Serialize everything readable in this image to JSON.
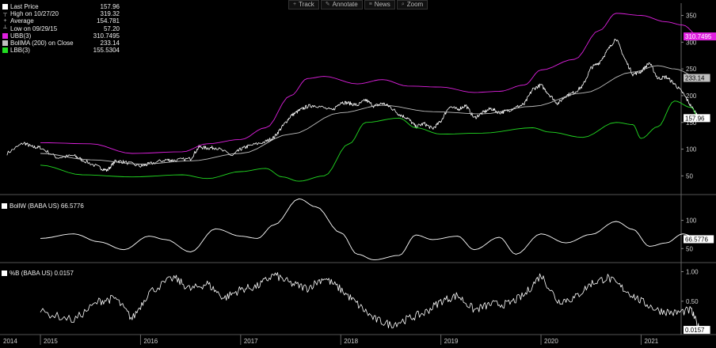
{
  "toolbar": {
    "buttons": [
      {
        "label": "Track",
        "icon": "crosshair-icon",
        "glyph": "+"
      },
      {
        "label": "Annotate",
        "icon": "pencil-icon",
        "glyph": "✎"
      },
      {
        "label": "News",
        "icon": "news-icon",
        "glyph": "≡"
      },
      {
        "label": "Zoom",
        "icon": "zoom-icon",
        "glyph": "⌕"
      }
    ]
  },
  "legend": {
    "items": [
      {
        "label": "Last Price",
        "value": "157.96",
        "swatch": "#ffffff",
        "glyph": ""
      },
      {
        "label": "High on 10/27/20",
        "value": "319.32",
        "swatch": "",
        "glyph": "┬"
      },
      {
        "label": "Average",
        "value": "154.781",
        "swatch": "",
        "glyph": "+"
      },
      {
        "label": "Low on 09/29/15",
        "value": "57.20",
        "swatch": "",
        "glyph": "┴"
      },
      {
        "label": "UBB(3)",
        "value": "310.7495",
        "swatch": "#e020e0",
        "glyph": ""
      },
      {
        "label": "BollMA (200)  on Close",
        "value": "233.14",
        "swatch": "#bfbfbf",
        "glyph": ""
      },
      {
        "label": "LBB(3)",
        "value": "155.5304",
        "swatch": "#22dd22",
        "glyph": ""
      }
    ]
  },
  "panels": {
    "bollw_title": "BollW (BABA US) 66.5776",
    "pctb_title": "%B (BABA US) 0.0157"
  },
  "chart_data": [
    {
      "type": "line",
      "panel": "price",
      "x_start": "2014-09",
      "x_end": "2021-05",
      "ylim": [
        18,
        370
      ],
      "yticks": [
        50,
        100,
        150,
        200,
        250,
        300,
        350
      ],
      "x_tick_labels": [
        "2014",
        "2015",
        "2016",
        "2017",
        "2018",
        "2019",
        "2020",
        "2021"
      ],
      "tags": [
        {
          "series": "UBB(3)",
          "value": "310.7495",
          "color": "#e020e0"
        },
        {
          "series": "BollMA (200)",
          "value": "233.14",
          "color": "#bfbfbf"
        },
        {
          "series": "Last Price",
          "value": "157.96",
          "color": "#ffffff"
        }
      ],
      "series": [
        {
          "name": "Last Price",
          "color": "#ffffff",
          "noise": 3.5,
          "points": [
            [
              "2014-09",
              92
            ],
            [
              "2014-11",
              112
            ],
            [
              "2014-12",
              104
            ],
            [
              "2015-01",
              103
            ],
            [
              "2015-03",
              84
            ],
            [
              "2015-05",
              88
            ],
            [
              "2015-06",
              80
            ],
            [
              "2015-08",
              66
            ],
            [
              "2015-09",
              60
            ],
            [
              "2015-10",
              78
            ],
            [
              "2015-11",
              76
            ],
            [
              "2016-01",
              68
            ],
            [
              "2016-02",
              72
            ],
            [
              "2016-04",
              80
            ],
            [
              "2016-05",
              79
            ],
            [
              "2016-07",
              82
            ],
            [
              "2016-08",
              104
            ],
            [
              "2016-09",
              102
            ],
            [
              "2016-10",
              103
            ],
            [
              "2016-12",
              88
            ],
            [
              "2017-01",
              100
            ],
            [
              "2017-02",
              106
            ],
            [
              "2017-04",
              114
            ],
            [
              "2017-05",
              122
            ],
            [
              "2017-06",
              142
            ],
            [
              "2017-07",
              162
            ],
            [
              "2017-08",
              172
            ],
            [
              "2017-09",
              180
            ],
            [
              "2017-10",
              182
            ],
            [
              "2017-12",
              172
            ],
            [
              "2018-01",
              188
            ],
            [
              "2018-02",
              186
            ],
            [
              "2018-03",
              182
            ],
            [
              "2018-04",
              192
            ],
            [
              "2018-05",
              180
            ],
            [
              "2018-06",
              186
            ],
            [
              "2018-07",
              178
            ],
            [
              "2018-08",
              165
            ],
            [
              "2018-09",
              158
            ],
            [
              "2018-10",
              142
            ],
            [
              "2018-11",
              148
            ],
            [
              "2018-12",
              138
            ],
            [
              "2019-01",
              152
            ],
            [
              "2019-02",
              180
            ],
            [
              "2019-03",
              174
            ],
            [
              "2019-04",
              182
            ],
            [
              "2019-05",
              158
            ],
            [
              "2019-06",
              168
            ],
            [
              "2019-07",
              176
            ],
            [
              "2019-08",
              168
            ],
            [
              "2019-09",
              172
            ],
            [
              "2019-10",
              178
            ],
            [
              "2019-11",
              184
            ],
            [
              "2019-12",
              212
            ],
            [
              "2020-01",
              220
            ],
            [
              "2020-02",
              202
            ],
            [
              "2020-03",
              185
            ],
            [
              "2020-04",
              200
            ],
            [
              "2020-05",
              206
            ],
            [
              "2020-06",
              218
            ],
            [
              "2020-07",
              252
            ],
            [
              "2020-08",
              262
            ],
            [
              "2020-09",
              285
            ],
            [
              "2020-10",
              308
            ],
            [
              "2020-11",
              270
            ],
            [
              "2020-12",
              240
            ],
            [
              "2021-01",
              245
            ],
            [
              "2021-02",
              262
            ],
            [
              "2021-03",
              232
            ],
            [
              "2021-04",
              235
            ],
            [
              "2021-05",
              222
            ],
            [
              "2021-06",
              205
            ],
            [
              "2021-07",
              180
            ],
            [
              "2021-08",
              158
            ]
          ]
        },
        {
          "name": "UBB(3)",
          "color": "#e020e0",
          "points": [
            [
              "2015-01",
              112
            ],
            [
              "2015-07",
              110
            ],
            [
              "2015-12",
              92
            ],
            [
              "2016-06",
              95
            ],
            [
              "2016-09",
              110
            ],
            [
              "2017-01",
              118
            ],
            [
              "2017-04",
              140
            ],
            [
              "2017-07",
              200
            ],
            [
              "2017-09",
              232
            ],
            [
              "2017-11",
              236
            ],
            [
              "2018-03",
              222
            ],
            [
              "2018-06",
              230
            ],
            [
              "2018-09",
              218
            ],
            [
              "2019-01",
              216
            ],
            [
              "2019-05",
              206
            ],
            [
              "2019-08",
              208
            ],
            [
              "2019-11",
              220
            ],
            [
              "2020-01",
              248
            ],
            [
              "2020-05",
              268
            ],
            [
              "2020-08",
              322
            ],
            [
              "2020-10",
              354
            ],
            [
              "2021-01",
              350
            ],
            [
              "2021-04",
              338
            ],
            [
              "2021-06",
              332
            ],
            [
              "2021-08",
              310
            ]
          ]
        },
        {
          "name": "BollMA (200)",
          "color": "#bfbfbf",
          "points": [
            [
              "2015-01",
              92
            ],
            [
              "2015-07",
              80
            ],
            [
              "2016-01",
              72
            ],
            [
              "2016-07",
              78
            ],
            [
              "2017-01",
              92
            ],
            [
              "2017-07",
              128
            ],
            [
              "2018-01",
              168
            ],
            [
              "2018-06",
              182
            ],
            [
              "2018-12",
              170
            ],
            [
              "2019-06",
              166
            ],
            [
              "2019-12",
              180
            ],
            [
              "2020-06",
              205
            ],
            [
              "2020-12",
              244
            ],
            [
              "2021-03",
              256
            ],
            [
              "2021-05",
              250
            ],
            [
              "2021-08",
              233
            ]
          ]
        },
        {
          "name": "LBB(3)",
          "color": "#22dd22",
          "points": [
            [
              "2015-01",
              70
            ],
            [
              "2015-06",
              52
            ],
            [
              "2015-12",
              48
            ],
            [
              "2016-06",
              52
            ],
            [
              "2016-09",
              45
            ],
            [
              "2017-01",
              58
            ],
            [
              "2017-04",
              64
            ],
            [
              "2017-06",
              48
            ],
            [
              "2017-08",
              40
            ],
            [
              "2017-11",
              50
            ],
            [
              "2018-02",
              110
            ],
            [
              "2018-04",
              150
            ],
            [
              "2018-08",
              158
            ],
            [
              "2018-10",
              140
            ],
            [
              "2019-01",
              128
            ],
            [
              "2019-06",
              130
            ],
            [
              "2019-12",
              140
            ],
            [
              "2020-02",
              132
            ],
            [
              "2020-06",
              122
            ],
            [
              "2020-10",
              150
            ],
            [
              "2020-12",
              146
            ],
            [
              "2021-01",
              120
            ],
            [
              "2021-03",
              142
            ],
            [
              "2021-05",
              190
            ],
            [
              "2021-07",
              178
            ],
            [
              "2021-08",
              155
            ]
          ]
        }
      ]
    },
    {
      "type": "line",
      "panel": "bollw",
      "name": "BollW (BABA US)",
      "ylim": [
        28,
        140
      ],
      "yticks": [
        50,
        100
      ],
      "tags": [
        {
          "series": "BollW",
          "value": "66.5776",
          "color": "#ffffff"
        }
      ],
      "series": [
        {
          "name": "BollW",
          "color": "#ffffff",
          "points": [
            [
              "2015-01",
              68
            ],
            [
              "2015-05",
              76
            ],
            [
              "2015-08",
              62
            ],
            [
              "2015-11",
              48
            ],
            [
              "2016-02",
              72
            ],
            [
              "2016-04",
              66
            ],
            [
              "2016-07",
              44
            ],
            [
              "2016-10",
              85
            ],
            [
              "2017-01",
              72
            ],
            [
              "2017-03",
              68
            ],
            [
              "2017-05",
              92
            ],
            [
              "2017-08",
              138
            ],
            [
              "2017-10",
              124
            ],
            [
              "2018-01",
              78
            ],
            [
              "2018-03",
              40
            ],
            [
              "2018-05",
              30
            ],
            [
              "2018-08",
              38
            ],
            [
              "2018-10",
              74
            ],
            [
              "2018-12",
              66
            ],
            [
              "2019-03",
              72
            ],
            [
              "2019-05",
              48
            ],
            [
              "2019-08",
              70
            ],
            [
              "2019-10",
              40
            ],
            [
              "2020-01",
              76
            ],
            [
              "2020-04",
              60
            ],
            [
              "2020-07",
              75
            ],
            [
              "2020-10",
              98
            ],
            [
              "2020-12",
              84
            ],
            [
              "2021-02",
              54
            ],
            [
              "2021-04",
              60
            ],
            [
              "2021-06",
              76
            ],
            [
              "2021-08",
              66.5776
            ]
          ]
        }
      ]
    },
    {
      "type": "line",
      "panel": "pctb",
      "name": "%B (BABA US)",
      "ylim": [
        -0.05,
        1.1
      ],
      "yticks": [
        0.5,
        1.0
      ],
      "yticklabels": [
        "0.50",
        "1.00"
      ],
      "tags": [
        {
          "series": "%B",
          "value": "0.0157",
          "color": "#ffffff"
        }
      ],
      "series": [
        {
          "name": "%B",
          "color": "#ffffff",
          "noise": 0.07,
          "points": [
            [
              "2015-01",
              0.32
            ],
            [
              "2015-05",
              0.18
            ],
            [
              "2015-08",
              0.5
            ],
            [
              "2015-10",
              0.55
            ],
            [
              "2015-12",
              0.2
            ],
            [
              "2016-02",
              0.65
            ],
            [
              "2016-05",
              0.9
            ],
            [
              "2016-07",
              0.7
            ],
            [
              "2016-09",
              0.8
            ],
            [
              "2016-11",
              0.55
            ],
            [
              "2017-01",
              0.7
            ],
            [
              "2017-03",
              0.75
            ],
            [
              "2017-05",
              0.95
            ],
            [
              "2017-07",
              0.8
            ],
            [
              "2017-09",
              0.72
            ],
            [
              "2017-11",
              0.9
            ],
            [
              "2018-01",
              0.7
            ],
            [
              "2018-03",
              0.45
            ],
            [
              "2018-05",
              0.2
            ],
            [
              "2018-07",
              0.1
            ],
            [
              "2018-09",
              0.2
            ],
            [
              "2018-11",
              0.3
            ],
            [
              "2019-01",
              0.5
            ],
            [
              "2019-03",
              0.6
            ],
            [
              "2019-05",
              0.35
            ],
            [
              "2019-07",
              0.45
            ],
            [
              "2019-09",
              0.45
            ],
            [
              "2019-11",
              0.6
            ],
            [
              "2020-01",
              0.95
            ],
            [
              "2020-03",
              0.5
            ],
            [
              "2020-05",
              0.55
            ],
            [
              "2020-07",
              0.8
            ],
            [
              "2020-09",
              0.9
            ],
            [
              "2020-11",
              0.7
            ],
            [
              "2021-01",
              0.5
            ],
            [
              "2021-03",
              0.35
            ],
            [
              "2021-05",
              0.3
            ],
            [
              "2021-07",
              0.35
            ],
            [
              "2021-08",
              0.0157
            ]
          ]
        }
      ]
    }
  ]
}
